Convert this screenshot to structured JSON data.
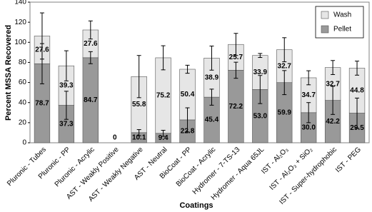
{
  "chart_data": {
    "type": "stacked_bar",
    "x_label": "Coatings",
    "y_label": "Percent MSSA Recovered",
    "categories": [
      "Pluronic - Tubes",
      "Pluronic - PP",
      "Pluronic - Acrylic",
      "AST - Weakly Positive",
      "AST - Weakly Negative",
      "AST - Neutral",
      "BioCoat - PP",
      "BioCoat - Acrylic",
      "Hydromer - 7-TS-13",
      "Hydromer - Aqua 65JL",
      "IST - Al₂O₃",
      "IST - Al₂O₃ + SiO₂",
      "IST - Super-hydrophobic",
      "IST - PEG"
    ],
    "series": [
      {
        "name": "Pellet",
        "color": "#999999",
        "values": [
          78.7,
          37.3,
          84.7,
          0,
          10.1,
          9.4,
          22.8,
          45.4,
          72.2,
          53.0,
          59.9,
          30.0,
          42.2,
          29.5
        ],
        "value_labels": [
          "78.7",
          "37.3",
          "84.7",
          "0",
          "10.1",
          "9.4",
          "22.8",
          "45.4",
          "72.2",
          "53.0",
          "59.9",
          "30.0",
          "42.2",
          "29.5"
        ],
        "errors": [
          20,
          14,
          6,
          null,
          3,
          3,
          12,
          8,
          8,
          14,
          12,
          10,
          14,
          15
        ]
      },
      {
        "name": "Wash",
        "color": "#e6e6e6",
        "values": [
          27.6,
          39.3,
          27.6,
          null,
          55.8,
          75.2,
          50.4,
          38.9,
          25.7,
          33.9,
          32.7,
          34.7,
          32.7,
          44.8
        ],
        "value_labels": [
          "27.6",
          "39.3",
          "27.6",
          null,
          "55.8",
          "75.2",
          "50.4",
          "38.9",
          "25.7",
          "33.9",
          "32.7",
          "34.7",
          "32.7",
          "44.8"
        ],
        "errors": [
          23,
          15,
          9,
          null,
          21,
          12,
          4,
          12,
          11,
          2,
          12,
          7,
          7,
          7
        ]
      }
    ],
    "ylim": [
      0,
      140
    ],
    "yticks": [
      0,
      20,
      40,
      60,
      80,
      100,
      120,
      140
    ],
    "grid": false,
    "legend": "upper right"
  }
}
